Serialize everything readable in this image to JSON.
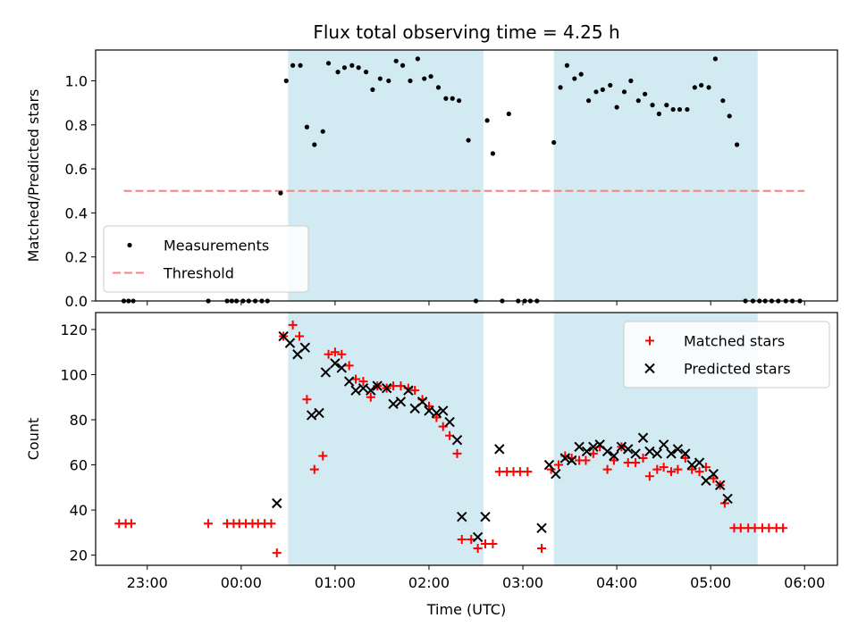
{
  "chart_data": [
    {
      "type": "scatter",
      "title": "Flux total observing time = 4.25 h",
      "xlabel": "",
      "ylabel": "Matched/Predicted stars",
      "ylim": [
        0,
        1.14
      ],
      "yticks": [
        0.0,
        0.2,
        0.4,
        0.6,
        0.8,
        1.0
      ],
      "ytick_labels": [
        "0.0",
        "0.2",
        "0.4",
        "0.6",
        "0.8",
        "1.0"
      ],
      "xlim": [
        -1.55,
        6.35
      ],
      "xticks": [
        -1,
        0,
        1,
        2,
        3,
        4,
        5,
        6
      ],
      "shaded_intervals": [
        [
          0.5,
          2.58
        ],
        [
          3.33,
          5.5
        ]
      ],
      "shade_color": "#add8e6",
      "legend": {
        "placement": "lower-left",
        "entries": [
          {
            "label": "Measurements",
            "marker": "dot",
            "color": "#000000"
          },
          {
            "label": "Threshold",
            "marker": "dashed-line",
            "color": "#ff7f7f"
          }
        ]
      },
      "threshold": {
        "name": "Threshold",
        "value": 0.5,
        "x": [
          -1.25,
          6.0
        ],
        "color": "#ff7f7f"
      },
      "series": [
        {
          "name": "Measurements",
          "color": "#000000",
          "points": [
            [
              -1.25,
              0.0
            ],
            [
              -1.2,
              0.0
            ],
            [
              -1.15,
              0.0
            ],
            [
              -0.35,
              0.0
            ],
            [
              -0.15,
              0.0
            ],
            [
              -0.1,
              0.0
            ],
            [
              -0.05,
              0.0
            ],
            [
              0.02,
              0.0
            ],
            [
              0.08,
              0.0
            ],
            [
              0.15,
              0.0
            ],
            [
              0.22,
              0.0
            ],
            [
              0.28,
              0.0
            ],
            [
              0.42,
              0.49
            ],
            [
              0.48,
              1.0
            ],
            [
              0.55,
              1.07
            ],
            [
              0.63,
              1.07
            ],
            [
              0.7,
              0.79
            ],
            [
              0.78,
              0.71
            ],
            [
              0.87,
              0.77
            ],
            [
              0.93,
              1.08
            ],
            [
              1.03,
              1.04
            ],
            [
              1.1,
              1.06
            ],
            [
              1.18,
              1.07
            ],
            [
              1.25,
              1.06
            ],
            [
              1.33,
              1.04
            ],
            [
              1.4,
              0.96
            ],
            [
              1.48,
              1.01
            ],
            [
              1.57,
              1.0
            ],
            [
              1.65,
              1.09
            ],
            [
              1.72,
              1.07
            ],
            [
              1.8,
              1.0
            ],
            [
              1.88,
              1.1
            ],
            [
              1.95,
              1.01
            ],
            [
              2.02,
              1.02
            ],
            [
              2.1,
              0.97
            ],
            [
              2.18,
              0.92
            ],
            [
              2.25,
              0.92
            ],
            [
              2.32,
              0.91
            ],
            [
              2.42,
              0.73
            ],
            [
              2.5,
              0.0
            ],
            [
              2.62,
              0.82
            ],
            [
              2.68,
              0.67
            ],
            [
              2.78,
              0.0
            ],
            [
              2.85,
              0.85
            ],
            [
              2.95,
              0.0
            ],
            [
              3.02,
              0.0
            ],
            [
              3.08,
              0.0
            ],
            [
              3.15,
              0.0
            ],
            [
              3.33,
              0.72
            ],
            [
              3.4,
              0.97
            ],
            [
              3.47,
              1.07
            ],
            [
              3.55,
              1.01
            ],
            [
              3.62,
              1.03
            ],
            [
              3.7,
              0.91
            ],
            [
              3.78,
              0.95
            ],
            [
              3.85,
              0.96
            ],
            [
              3.93,
              0.98
            ],
            [
              4.0,
              0.88
            ],
            [
              4.08,
              0.95
            ],
            [
              4.15,
              1.0
            ],
            [
              4.23,
              0.91
            ],
            [
              4.3,
              0.94
            ],
            [
              4.38,
              0.89
            ],
            [
              4.45,
              0.85
            ],
            [
              4.53,
              0.89
            ],
            [
              4.6,
              0.87
            ],
            [
              4.67,
              0.87
            ],
            [
              4.75,
              0.87
            ],
            [
              4.83,
              0.97
            ],
            [
              4.9,
              0.98
            ],
            [
              4.98,
              0.97
            ],
            [
              5.05,
              1.1
            ],
            [
              5.13,
              0.91
            ],
            [
              5.2,
              0.84
            ],
            [
              5.28,
              0.71
            ],
            [
              5.37,
              0.0
            ],
            [
              5.45,
              0.0
            ],
            [
              5.52,
              0.0
            ],
            [
              5.58,
              0.0
            ],
            [
              5.65,
              0.0
            ],
            [
              5.72,
              0.0
            ],
            [
              5.8,
              0.0
            ],
            [
              5.87,
              0.0
            ],
            [
              5.95,
              0.0
            ]
          ]
        }
      ]
    },
    {
      "type": "scatter",
      "title": "",
      "xlabel": "Time (UTC)",
      "ylabel": "Count",
      "ylim": [
        15.5,
        127.5
      ],
      "yticks": [
        20,
        40,
        60,
        80,
        100,
        120
      ],
      "ytick_labels": [
        "20",
        "40",
        "60",
        "80",
        "100",
        "120"
      ],
      "xlim": [
        -1.55,
        6.35
      ],
      "xticks": [
        -1,
        0,
        1,
        2,
        3,
        4,
        5,
        6
      ],
      "xtick_labels": [
        "23:00",
        "00:00",
        "01:00",
        "02:00",
        "03:00",
        "04:00",
        "05:00",
        "06:00"
      ],
      "shaded_intervals": [
        [
          0.5,
          2.58
        ],
        [
          3.33,
          5.5
        ]
      ],
      "shade_color": "#add8e6",
      "legend": {
        "placement": "top-right",
        "entries": [
          {
            "label": "Matched stars",
            "marker": "plus",
            "color": "#ff0000"
          },
          {
            "label": "Predicted stars",
            "marker": "x",
            "color": "#000000"
          }
        ]
      },
      "series": [
        {
          "name": "Matched stars",
          "marker": "plus",
          "color": "#ff0000",
          "points": [
            [
              -1.3,
              34
            ],
            [
              -1.23,
              34
            ],
            [
              -1.17,
              34
            ],
            [
              -0.35,
              34
            ],
            [
              -0.15,
              34
            ],
            [
              -0.08,
              34
            ],
            [
              -0.02,
              34
            ],
            [
              0.05,
              34
            ],
            [
              0.12,
              34
            ],
            [
              0.18,
              34
            ],
            [
              0.25,
              34
            ],
            [
              0.32,
              34
            ],
            [
              0.38,
              21
            ],
            [
              0.45,
              117
            ],
            [
              0.55,
              122
            ],
            [
              0.62,
              117
            ],
            [
              0.7,
              89
            ],
            [
              0.78,
              58
            ],
            [
              0.87,
              64
            ],
            [
              0.93,
              109
            ],
            [
              1.0,
              110
            ],
            [
              1.07,
              109
            ],
            [
              1.15,
              104
            ],
            [
              1.22,
              98
            ],
            [
              1.3,
              97
            ],
            [
              1.38,
              90
            ],
            [
              1.45,
              95
            ],
            [
              1.55,
              94
            ],
            [
              1.62,
              95
            ],
            [
              1.7,
              95
            ],
            [
              1.78,
              94
            ],
            [
              1.85,
              93
            ],
            [
              1.93,
              89
            ],
            [
              2.0,
              86
            ],
            [
              2.08,
              81
            ],
            [
              2.15,
              77
            ],
            [
              2.22,
              73
            ],
            [
              2.3,
              65
            ],
            [
              2.35,
              27
            ],
            [
              2.45,
              27
            ],
            [
              2.52,
              23
            ],
            [
              2.6,
              25
            ],
            [
              2.68,
              25
            ],
            [
              2.75,
              57
            ],
            [
              2.83,
              57
            ],
            [
              2.9,
              57
            ],
            [
              2.97,
              57
            ],
            [
              3.05,
              57
            ],
            [
              3.2,
              23
            ],
            [
              3.3,
              58
            ],
            [
              3.38,
              60
            ],
            [
              3.45,
              64
            ],
            [
              3.52,
              63
            ],
            [
              3.6,
              62
            ],
            [
              3.67,
              62
            ],
            [
              3.75,
              65
            ],
            [
              3.82,
              68
            ],
            [
              3.9,
              58
            ],
            [
              3.97,
              62
            ],
            [
              4.05,
              68
            ],
            [
              4.12,
              61
            ],
            [
              4.2,
              61
            ],
            [
              4.28,
              63
            ],
            [
              4.35,
              55
            ],
            [
              4.43,
              58
            ],
            [
              4.5,
              59
            ],
            [
              4.58,
              57
            ],
            [
              4.65,
              58
            ],
            [
              4.73,
              63
            ],
            [
              4.8,
              58
            ],
            [
              4.88,
              57
            ],
            [
              4.95,
              59
            ],
            [
              5.03,
              54
            ],
            [
              5.1,
              51
            ],
            [
              5.15,
              43
            ],
            [
              5.25,
              32
            ],
            [
              5.32,
              32
            ],
            [
              5.4,
              32
            ],
            [
              5.47,
              32
            ],
            [
              5.55,
              32
            ],
            [
              5.62,
              32
            ],
            [
              5.7,
              32
            ],
            [
              5.77,
              32
            ]
          ]
        },
        {
          "name": "Predicted stars",
          "marker": "x",
          "color": "#000000",
          "points": [
            [
              0.38,
              43
            ],
            [
              0.45,
              117
            ],
            [
              0.52,
              114
            ],
            [
              0.6,
              109
            ],
            [
              0.68,
              112
            ],
            [
              0.75,
              82
            ],
            [
              0.83,
              83
            ],
            [
              0.9,
              101
            ],
            [
              1.0,
              105
            ],
            [
              1.07,
              103
            ],
            [
              1.15,
              97
            ],
            [
              1.22,
              93
            ],
            [
              1.3,
              94
            ],
            [
              1.38,
              93
            ],
            [
              1.45,
              95
            ],
            [
              1.55,
              94
            ],
            [
              1.62,
              87
            ],
            [
              1.7,
              88
            ],
            [
              1.78,
              93
            ],
            [
              1.85,
              85
            ],
            [
              1.93,
              88
            ],
            [
              2.0,
              84
            ],
            [
              2.08,
              83
            ],
            [
              2.15,
              84
            ],
            [
              2.22,
              79
            ],
            [
              2.3,
              71
            ],
            [
              2.35,
              37
            ],
            [
              2.52,
              28
            ],
            [
              2.6,
              37
            ],
            [
              2.75,
              67
            ],
            [
              3.2,
              32
            ],
            [
              3.28,
              60
            ],
            [
              3.35,
              56
            ],
            [
              3.45,
              63
            ],
            [
              3.52,
              62
            ],
            [
              3.6,
              68
            ],
            [
              3.68,
              66
            ],
            [
              3.75,
              68
            ],
            [
              3.82,
              69
            ],
            [
              3.9,
              66
            ],
            [
              3.97,
              64
            ],
            [
              4.05,
              68
            ],
            [
              4.12,
              67
            ],
            [
              4.2,
              65
            ],
            [
              4.28,
              72
            ],
            [
              4.35,
              66
            ],
            [
              4.43,
              65
            ],
            [
              4.5,
              69
            ],
            [
              4.58,
              65
            ],
            [
              4.65,
              67
            ],
            [
              4.73,
              65
            ],
            [
              4.8,
              60
            ],
            [
              4.88,
              61
            ],
            [
              4.95,
              53
            ],
            [
              5.03,
              56
            ],
            [
              5.1,
              51
            ],
            [
              5.18,
              45
            ]
          ]
        }
      ]
    }
  ]
}
